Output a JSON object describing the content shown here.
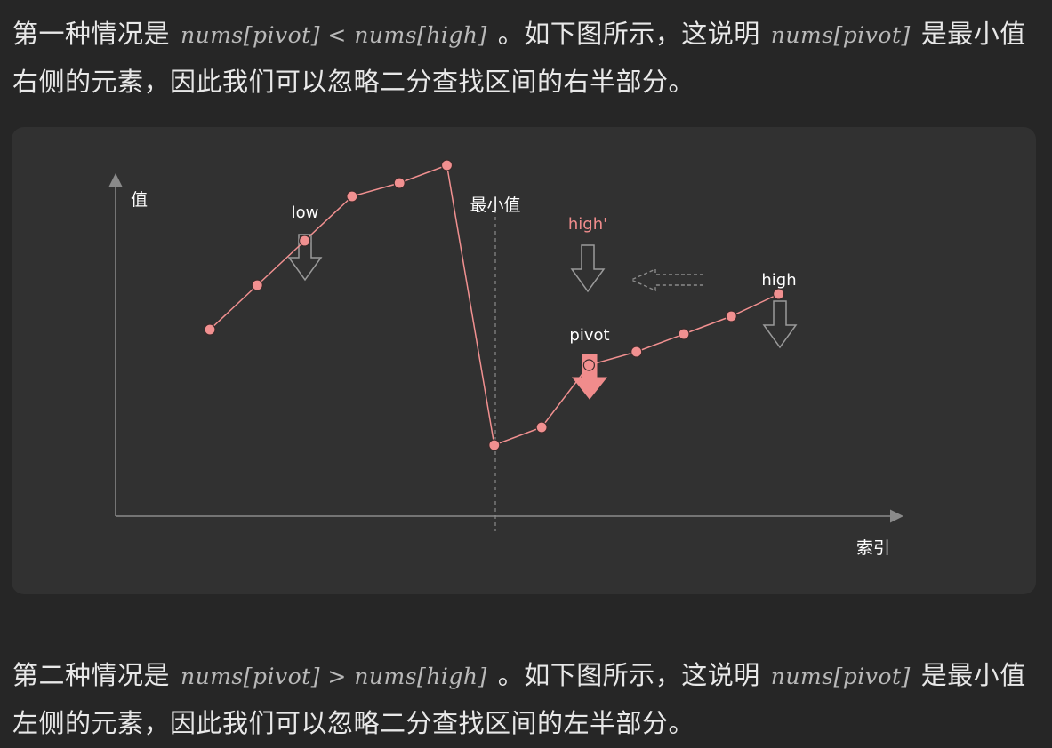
{
  "paragraph1": {
    "text_before": "第一种情况是",
    "math": "nums[pivot] < nums[high]",
    "text_middle": "。如下图所示，这说明",
    "math2": "nums[pivot]",
    "text_after": "是最小值右侧的元素，因此我们可以忽略二分查找区间的右半部分。"
  },
  "paragraph2": {
    "text_before": "第二种情况是",
    "math": "nums[pivot] > nums[high]",
    "text_middle": "。如下图所示，这说明",
    "math2": "nums[pivot]",
    "text_after": "是最小值左侧的元素，因此我们可以忽略二分查找区间的左半部分。"
  },
  "figure": {
    "y_axis_label": "值",
    "x_axis_label": "索引",
    "min_label": "最小值",
    "low_label": "low",
    "high_label": "high",
    "high_prime_label": "high'",
    "pivot_label": "pivot",
    "colors": {
      "point": "#f19090",
      "line": "#f19090",
      "axis": "#8a8a8a",
      "arrow_outline": "#9a9a9a",
      "pivot_arrow": "#f08c8c",
      "high_prime": "#f08c8c",
      "text": "#ffffff"
    }
  },
  "chart_data": {
    "type": "line",
    "x": [
      0,
      1,
      2,
      3,
      4,
      5,
      6,
      7,
      8,
      9,
      10,
      11,
      12
    ],
    "values": [
      0.42,
      0.52,
      0.62,
      0.72,
      0.75,
      0.79,
      0.16,
      0.2,
      0.34,
      0.37,
      0.41,
      0.45,
      0.5
    ],
    "series": [
      {
        "values": [
          0.42,
          0.52,
          0.62,
          0.72,
          0.75,
          0.79,
          0.16,
          0.2,
          0.34,
          0.37,
          0.41,
          0.45,
          0.5
        ]
      }
    ],
    "xlabel": "索引",
    "ylabel": "值",
    "markers": {
      "low": 2,
      "min": 6,
      "pivot": 8,
      "high": 12
    }
  }
}
